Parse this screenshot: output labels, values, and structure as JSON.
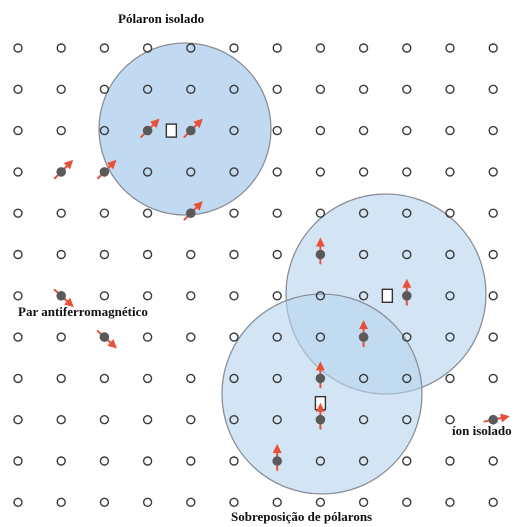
{
  "labels": {
    "isolated_polaron": "Pólaron isolado",
    "antiferro_pair": "Par antiferromagnético",
    "isolated_ion": "íon isolado",
    "polaron_overlap": "Sobreposição de pólarons"
  },
  "colors": {
    "site_ring": "#3a3a3a",
    "polaron_fill": "#b6d3ef",
    "polaron_overlap_fill": "#8fb8e2",
    "polaron_edge": "#8a8f96",
    "spin_arrow": "#e8503a",
    "magnetic_ion": "#5a5a5a",
    "vacancy": "#333333",
    "text": "#111111"
  },
  "lattice": {
    "rows": 12,
    "cols": 12
  }
}
